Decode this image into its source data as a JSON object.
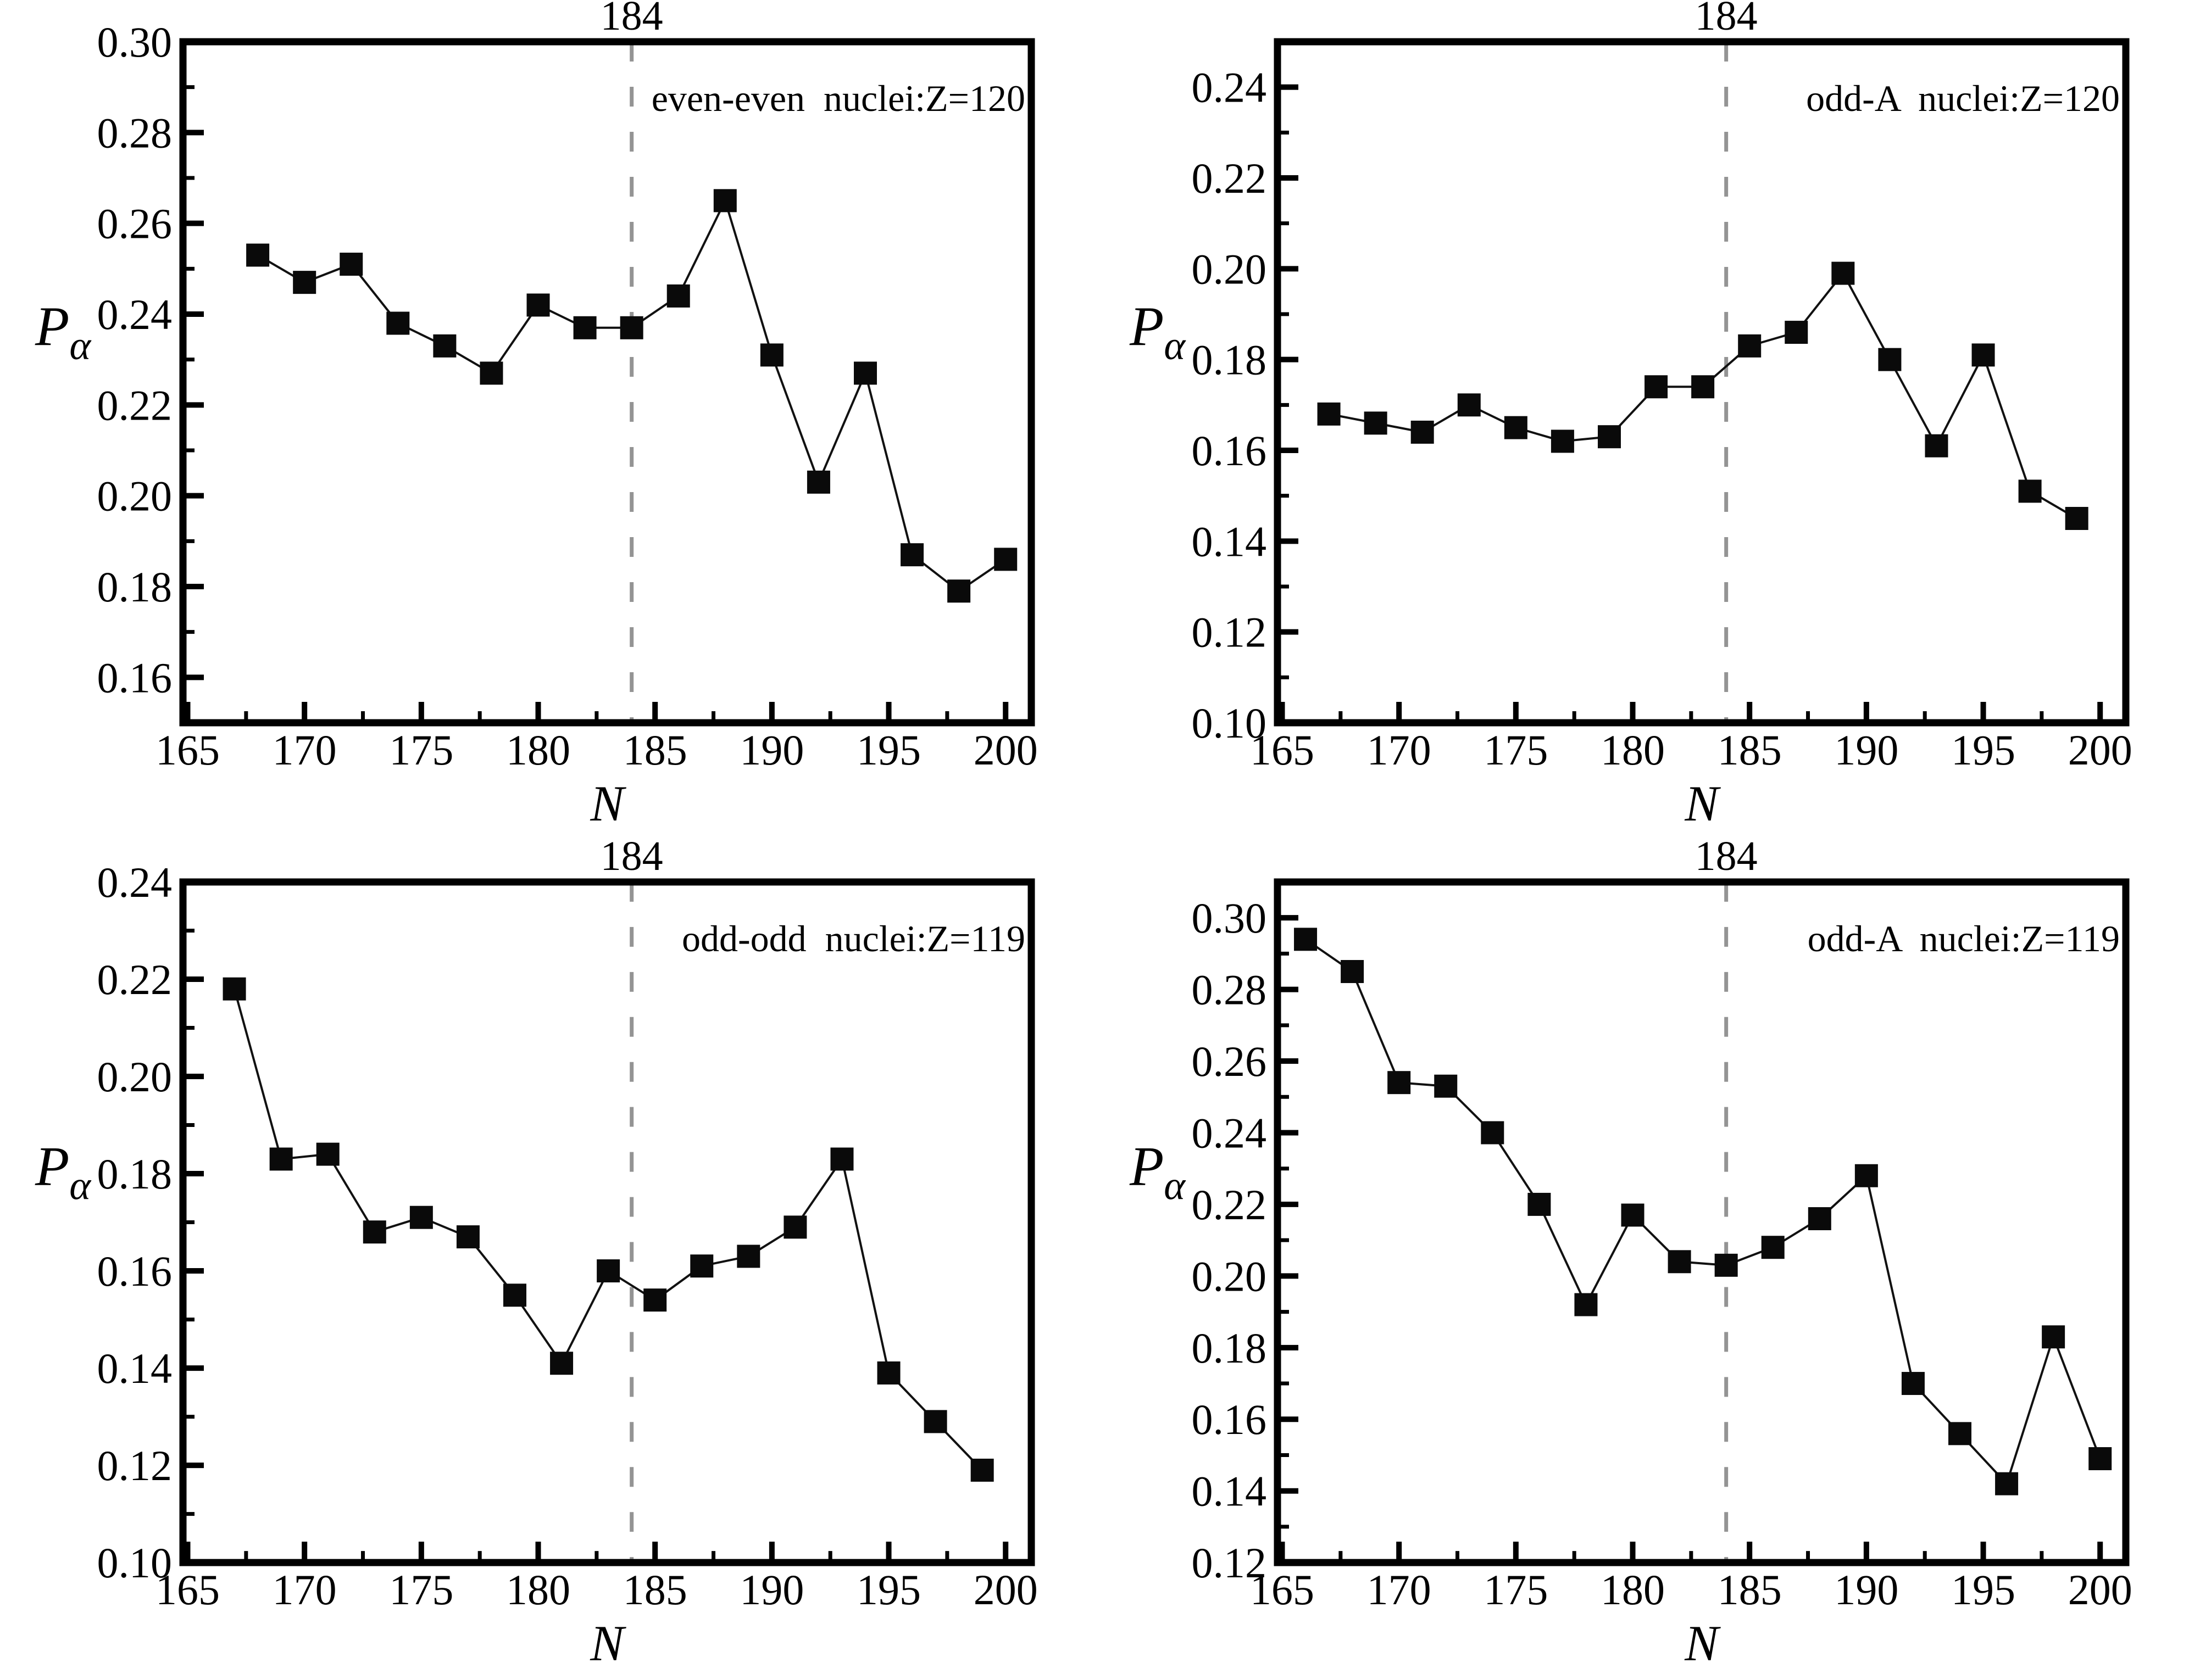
{
  "figure": {
    "background": "#ffffff",
    "colors": {
      "line": "#111111",
      "marker": "#0a0a0a",
      "dashed_line": "#949494",
      "frame": "#000000",
      "text": "#000000"
    },
    "xlabel": "N",
    "ylabel_base": "P",
    "ylabel_sub": "α"
  },
  "chart_data": [
    {
      "type": "line",
      "panel": "top-left",
      "annotation": "even-even  nuclei:Z=120",
      "marker": "filled-square",
      "line_style": "solid",
      "grid": false,
      "xlabel": "N",
      "ylabel": "P_alpha",
      "marker_line": {
        "x": 184,
        "label": "184"
      },
      "x": [
        168,
        170,
        172,
        174,
        176,
        178,
        180,
        182,
        184,
        186,
        188,
        190,
        192,
        194,
        196,
        198,
        200
      ],
      "y": [
        0.253,
        0.247,
        0.251,
        0.238,
        0.233,
        0.227,
        0.242,
        0.237,
        0.237,
        0.244,
        0.265,
        0.231,
        0.203,
        0.227,
        0.187,
        0.179,
        0.186
      ],
      "xlim": [
        164.8,
        201.1
      ],
      "ylim": [
        0.15,
        0.3
      ],
      "xticks": [
        165,
        170,
        175,
        180,
        185,
        190,
        195,
        200
      ],
      "x_minor_ticks": [
        167.5,
        172.5,
        177.5,
        182.5,
        187.5,
        192.5,
        197.5
      ],
      "yticks": [
        0.16,
        0.18,
        0.2,
        0.22,
        0.24,
        0.26,
        0.28,
        0.3
      ],
      "ytick_labels": [
        "0.16",
        "0.18",
        "0.20",
        "0.22",
        "0.24",
        "0.26",
        "0.28",
        "0.30"
      ],
      "y_minor_ticks": [
        0.17,
        0.19,
        0.21,
        0.23,
        0.25,
        0.27,
        0.29
      ]
    },
    {
      "type": "line",
      "panel": "top-right",
      "annotation": "odd-A  nuclei:Z=120",
      "marker": "filled-square",
      "line_style": "solid",
      "grid": false,
      "xlabel": "N",
      "ylabel": "P_alpha",
      "marker_line": {
        "x": 184,
        "label": "184"
      },
      "x": [
        167,
        169,
        171,
        173,
        175,
        177,
        179,
        181,
        183,
        185,
        187,
        189,
        191,
        193,
        195,
        197,
        199
      ],
      "y": [
        0.168,
        0.166,
        0.164,
        0.17,
        0.165,
        0.162,
        0.163,
        0.174,
        0.174,
        0.183,
        0.186,
        0.199,
        0.18,
        0.161,
        0.181,
        0.151,
        0.145
      ],
      "xlim": [
        164.8,
        201.1
      ],
      "ylim": [
        0.1,
        0.25
      ],
      "xticks": [
        165,
        170,
        175,
        180,
        185,
        190,
        195,
        200
      ],
      "x_minor_ticks": [
        167.5,
        172.5,
        177.5,
        182.5,
        187.5,
        192.5,
        197.5
      ],
      "yticks": [
        0.1,
        0.12,
        0.14,
        0.16,
        0.18,
        0.2,
        0.22,
        0.24
      ],
      "ytick_labels": [
        "0.10",
        "0.12",
        "0.14",
        "0.16",
        "0.18",
        "0.20",
        "0.22",
        "0.24"
      ],
      "y_minor_ticks": [
        0.11,
        0.13,
        0.15,
        0.17,
        0.19,
        0.21,
        0.23
      ]
    },
    {
      "type": "line",
      "panel": "bottom-left",
      "annotation": "odd-odd  nuclei:Z=119",
      "marker": "filled-square",
      "line_style": "solid",
      "grid": false,
      "xlabel": "N",
      "ylabel": "P_alpha",
      "marker_line": {
        "x": 184,
        "label": "184"
      },
      "x": [
        167,
        169,
        171,
        173,
        175,
        177,
        179,
        181,
        183,
        185,
        187,
        189,
        191,
        193,
        195,
        197,
        199
      ],
      "y": [
        0.218,
        0.183,
        0.184,
        0.168,
        0.171,
        0.167,
        0.155,
        0.141,
        0.16,
        0.154,
        0.161,
        0.163,
        0.169,
        0.183,
        0.139,
        0.129,
        0.119
      ],
      "xlim": [
        164.8,
        201.1
      ],
      "ylim": [
        0.1,
        0.24
      ],
      "xticks": [
        165,
        170,
        175,
        180,
        185,
        190,
        195,
        200
      ],
      "x_minor_ticks": [
        167.5,
        172.5,
        177.5,
        182.5,
        187.5,
        192.5,
        197.5
      ],
      "yticks": [
        0.1,
        0.12,
        0.14,
        0.16,
        0.18,
        0.2,
        0.22,
        0.24
      ],
      "ytick_labels": [
        "0.10",
        "0.12",
        "0.14",
        "0.16",
        "0.18",
        "0.20",
        "0.22",
        "0.24"
      ],
      "y_minor_ticks": [
        0.11,
        0.13,
        0.15,
        0.17,
        0.19,
        0.21,
        0.23
      ]
    },
    {
      "type": "line",
      "panel": "bottom-right",
      "annotation": "odd-A  nuclei:Z=119",
      "marker": "filled-square",
      "line_style": "solid",
      "grid": false,
      "xlabel": "N",
      "ylabel": "P_alpha",
      "marker_line": {
        "x": 184,
        "label": "184"
      },
      "x": [
        166,
        168,
        170,
        172,
        174,
        176,
        178,
        180,
        182,
        184,
        186,
        188,
        190,
        192,
        194,
        196,
        198,
        200
      ],
      "y": [
        0.294,
        0.285,
        0.254,
        0.253,
        0.24,
        0.22,
        0.192,
        0.217,
        0.204,
        0.203,
        0.208,
        0.216,
        0.228,
        0.17,
        0.156,
        0.142,
        0.183,
        0.149
      ],
      "xlim": [
        164.8,
        201.1
      ],
      "ylim": [
        0.12,
        0.31
      ],
      "xticks": [
        165,
        170,
        175,
        180,
        185,
        190,
        195,
        200
      ],
      "x_minor_ticks": [
        167.5,
        172.5,
        177.5,
        182.5,
        187.5,
        192.5,
        197.5
      ],
      "yticks": [
        0.12,
        0.14,
        0.16,
        0.18,
        0.2,
        0.22,
        0.24,
        0.26,
        0.28,
        0.3
      ],
      "ytick_labels": [
        "0.12",
        "0.14",
        "0.16",
        "0.18",
        "0.20",
        "0.22",
        "0.24",
        "0.26",
        "0.28",
        "0.30"
      ],
      "y_minor_ticks": [
        0.13,
        0.15,
        0.17,
        0.19,
        0.21,
        0.23,
        0.25,
        0.27,
        0.29
      ]
    }
  ]
}
